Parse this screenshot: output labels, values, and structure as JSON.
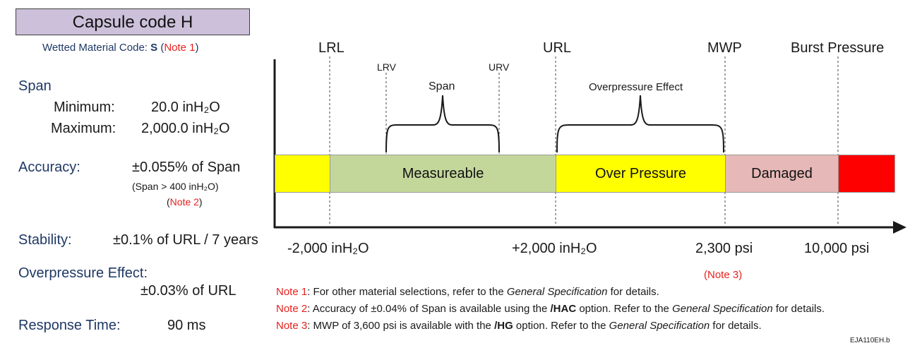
{
  "title": "Capsule code H",
  "wetted": {
    "prefix": "Wetted Material Code: ",
    "code": "S",
    "open": " (",
    "note": "Note 1",
    "close": ")"
  },
  "specs": {
    "span_label": "Span",
    "minimum_label": "Minimum:",
    "minimum_value": "20.0 inH₂O",
    "maximum_label": "Maximum:",
    "maximum_value": "2,000.0 inH₂O",
    "accuracy_label": "Accuracy:",
    "accuracy_value": "±0.055% of Span",
    "accuracy_condition": "(Span > 400 inH₂O)",
    "accuracy_note": "Note 2",
    "stability_label": "Stability:",
    "stability_value": "±0.1% of URL / 7 years",
    "overpressure_label": "Overpressure Effect:",
    "overpressure_value": "±0.03% of URL",
    "response_label": "Response Time:",
    "response_value": "90 ms"
  },
  "diagram": {
    "markers": {
      "lrl": "LRL",
      "url": "URL",
      "mwp": "MWP",
      "burst": "Burst Pressure"
    },
    "small_markers": {
      "lrv": "LRV",
      "urv": "URV"
    },
    "braces": {
      "span": "Span",
      "overpressure": "Overpressure Effect"
    },
    "bands": {
      "measureable": "Measureable",
      "over_pressure": "Over Pressure",
      "damaged": "Damaged"
    },
    "axis_values": {
      "lrl": "-2,000 inH₂O",
      "url": "+2,000 inH₂O",
      "mwp": "2,300 psi",
      "burst": "10,000 psi"
    },
    "mwp_note": {
      "open": "(",
      "note": "Note 3",
      "close": ")"
    },
    "colors": {
      "yellow": "#ffff00",
      "green": "#c4d79b",
      "pink": "#e6b8b7",
      "red": "#ff0000"
    }
  },
  "notes": [
    {
      "tag": "Note 1",
      "pre": ": For other material selections, refer to the ",
      "bold": "",
      "mid": "",
      "italic": "General Specification",
      "post": "  for details."
    },
    {
      "tag": "Note 2",
      "pre": ": Accuracy of ±0.04% of Span is available using the ",
      "bold": "/HAC",
      "mid": " option. Refer to the ",
      "italic": "General Specification",
      "post": "  for details."
    },
    {
      "tag": "Note 3",
      "pre": ": MWP of 3,600 psi is available with the ",
      "bold": "/HG",
      "mid": " option. Refer to the ",
      "italic": "General Specification",
      "post": "  for details."
    }
  ],
  "figure_id": "EJA110EH.b"
}
